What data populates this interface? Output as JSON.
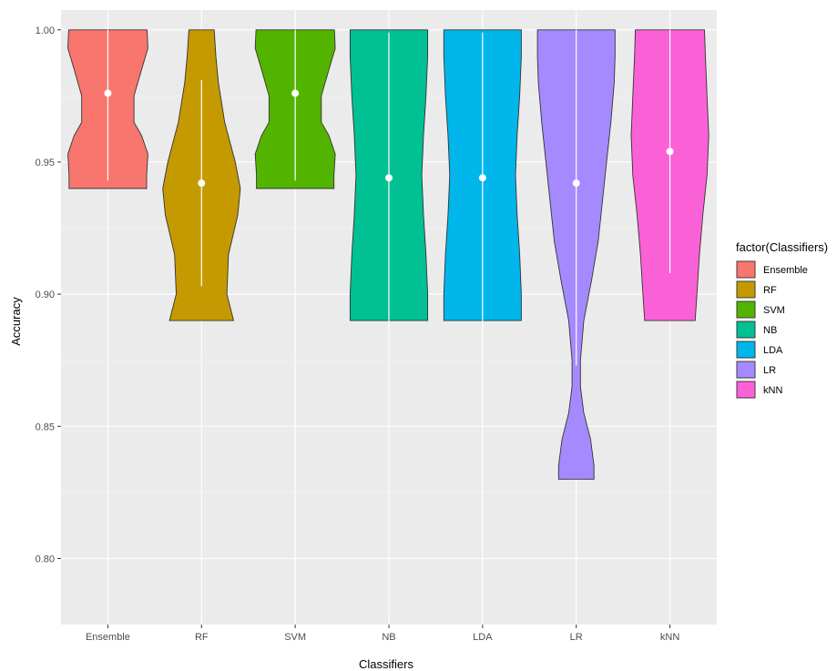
{
  "chart_data": {
    "type": "violin",
    "xlabel": "Classifiers",
    "ylabel": "Accuracy",
    "ylim": [
      0.775,
      1.0075
    ],
    "y_ticks": [
      0.8,
      0.85,
      0.9,
      0.95,
      1.0
    ],
    "y_tick_labels": [
      "0.80",
      "0.85",
      "0.90",
      "0.95",
      "1.00"
    ],
    "grid": true,
    "legend": {
      "title": "factor(Classifiers)",
      "position": "right"
    },
    "categories": [
      "Ensemble",
      "RF",
      "SVM",
      "NB",
      "LDA",
      "LR",
      "kNN"
    ],
    "series": [
      {
        "name": "Ensemble",
        "color": "#F8766D",
        "min": 0.94,
        "max": 1.0,
        "mean": 0.976,
        "sd_low": 0.943,
        "sd_high": 1.0,
        "density": [
          [
            0.94,
            0.92
          ],
          [
            0.945,
            0.92
          ],
          [
            0.953,
            0.95
          ],
          [
            0.96,
            0.8
          ],
          [
            0.965,
            0.62
          ],
          [
            0.975,
            0.62
          ],
          [
            0.985,
            0.8
          ],
          [
            0.993,
            0.95
          ],
          [
            1.0,
            0.93
          ]
        ]
      },
      {
        "name": "RF",
        "color": "#C49A00",
        "min": 0.89,
        "max": 1.0,
        "mean": 0.942,
        "sd_low": 0.903,
        "sd_high": 0.981,
        "density": [
          [
            0.89,
            0.76
          ],
          [
            0.9,
            0.6
          ],
          [
            0.915,
            0.64
          ],
          [
            0.93,
            0.86
          ],
          [
            0.94,
            0.92
          ],
          [
            0.95,
            0.8
          ],
          [
            0.965,
            0.55
          ],
          [
            0.98,
            0.4
          ],
          [
            0.99,
            0.34
          ],
          [
            1.0,
            0.3
          ]
        ]
      },
      {
        "name": "SVM",
        "color": "#53B400",
        "min": 0.94,
        "max": 1.0,
        "mean": 0.976,
        "sd_low": 0.943,
        "sd_high": 1.0,
        "density": [
          [
            0.94,
            0.92
          ],
          [
            0.945,
            0.92
          ],
          [
            0.953,
            0.95
          ],
          [
            0.96,
            0.8
          ],
          [
            0.965,
            0.62
          ],
          [
            0.975,
            0.62
          ],
          [
            0.985,
            0.8
          ],
          [
            0.993,
            0.95
          ],
          [
            1.0,
            0.93
          ]
        ]
      },
      {
        "name": "NB",
        "color": "#00C094",
        "min": 0.89,
        "max": 1.0,
        "mean": 0.944,
        "sd_low": 0.889,
        "sd_high": 0.999,
        "density": [
          [
            0.89,
            0.92
          ],
          [
            0.9,
            0.92
          ],
          [
            0.915,
            0.88
          ],
          [
            0.93,
            0.82
          ],
          [
            0.945,
            0.78
          ],
          [
            0.96,
            0.82
          ],
          [
            0.975,
            0.88
          ],
          [
            0.99,
            0.92
          ],
          [
            1.0,
            0.92
          ]
        ]
      },
      {
        "name": "LDA",
        "color": "#00B6EB",
        "min": 0.89,
        "max": 1.0,
        "mean": 0.944,
        "sd_low": 0.889,
        "sd_high": 0.999,
        "density": [
          [
            0.89,
            0.92
          ],
          [
            0.9,
            0.92
          ],
          [
            0.915,
            0.88
          ],
          [
            0.93,
            0.82
          ],
          [
            0.945,
            0.78
          ],
          [
            0.96,
            0.82
          ],
          [
            0.975,
            0.88
          ],
          [
            0.99,
            0.92
          ],
          [
            1.0,
            0.92
          ]
        ]
      },
      {
        "name": "LR",
        "color": "#A58AFF",
        "min": 0.83,
        "max": 1.0,
        "mean": 0.942,
        "sd_low": 0.873,
        "sd_high": 1.0,
        "density": [
          [
            0.83,
            0.42
          ],
          [
            0.835,
            0.42
          ],
          [
            0.845,
            0.34
          ],
          [
            0.855,
            0.18
          ],
          [
            0.865,
            0.1
          ],
          [
            0.875,
            0.1
          ],
          [
            0.89,
            0.18
          ],
          [
            0.905,
            0.36
          ],
          [
            0.92,
            0.52
          ],
          [
            0.935,
            0.62
          ],
          [
            0.95,
            0.72
          ],
          [
            0.965,
            0.82
          ],
          [
            0.98,
            0.9
          ],
          [
            0.99,
            0.92
          ],
          [
            1.0,
            0.92
          ]
        ]
      },
      {
        "name": "kNN",
        "color": "#FB61D7",
        "min": 0.89,
        "max": 1.0,
        "mean": 0.954,
        "sd_low": 0.908,
        "sd_high": 1.0,
        "density": [
          [
            0.89,
            0.6
          ],
          [
            0.9,
            0.64
          ],
          [
            0.915,
            0.7
          ],
          [
            0.93,
            0.78
          ],
          [
            0.945,
            0.88
          ],
          [
            0.96,
            0.92
          ],
          [
            0.975,
            0.88
          ],
          [
            0.99,
            0.84
          ],
          [
            1.0,
            0.82
          ]
        ]
      }
    ]
  }
}
